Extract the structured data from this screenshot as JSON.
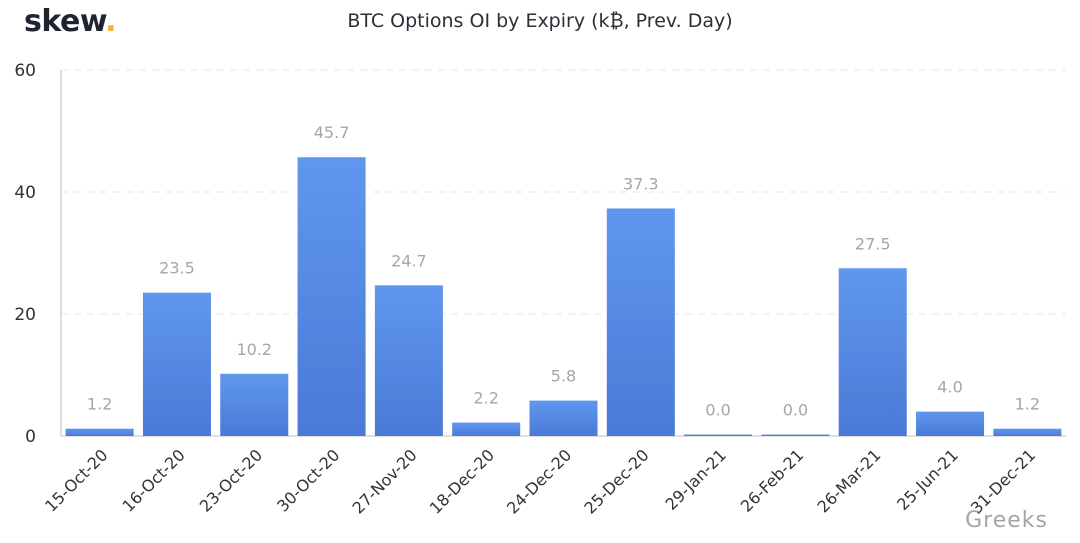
{
  "header": {
    "logo_text": "skew",
    "logo_dot": ".",
    "title": "BTC Options OI by Expiry (k₿, Prev. Day)"
  },
  "watermark": "Greeks",
  "colors": {
    "bar_top": "#6097ee",
    "bar_bottom": "#4a7ad6",
    "data_label": "#a6a6a6",
    "grid": "#e6e6e6",
    "logo_dot": "#f2b134"
  },
  "chart_data": {
    "type": "bar",
    "title": "BTC Options OI by Expiry (k₿, Prev. Day)",
    "categories": [
      "15-Oct-20",
      "16-Oct-20",
      "23-Oct-20",
      "30-Oct-20",
      "27-Nov-20",
      "18-Dec-20",
      "24-Dec-20",
      "25-Dec-20",
      "29-Jan-21",
      "26-Feb-21",
      "26-Mar-21",
      "25-Jun-21",
      "31-Dec-21"
    ],
    "values": [
      1.2,
      23.5,
      10.2,
      45.7,
      24.7,
      2.2,
      5.8,
      37.3,
      0.0,
      0.0,
      27.5,
      4.0,
      1.2
    ],
    "value_labels": [
      "1.2",
      "23.5",
      "10.2",
      "45.7",
      "24.7",
      "2.2",
      "5.8",
      "37.3",
      "0.0",
      "0.0",
      "27.5",
      "4.0",
      "1.2"
    ],
    "ylim": [
      0,
      60
    ],
    "yticks": [
      0,
      20,
      40,
      60
    ],
    "ytick_labels": [
      "0",
      "20",
      "40",
      "60"
    ],
    "xlabel": "",
    "ylabel": "",
    "grid": true,
    "legend": false
  }
}
